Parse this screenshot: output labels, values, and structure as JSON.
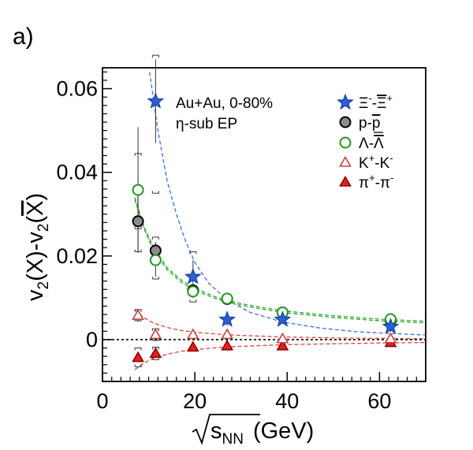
{
  "chart_data": {
    "type": "scatter",
    "panel_label": "a)",
    "annotation_lines": [
      "Au+Au,  0-80%",
      "η-sub EP"
    ],
    "xlim": [
      0,
      70
    ],
    "ylim": [
      -0.01,
      0.065
    ],
    "x_ticks": [
      0,
      20,
      40,
      60
    ],
    "y_ticks": [
      0,
      0.02,
      0.04,
      0.06
    ],
    "x_tick_labels": [
      "0",
      "20",
      "40",
      "60"
    ],
    "y_tick_labels": [
      "0",
      "0.02",
      "0.04",
      "0.06"
    ],
    "x_axis_label": {
      "prefix": "s",
      "subscript": "NN",
      "suffix": "(GeV)"
    },
    "y_axis_label": {
      "a": "v",
      "a_sub": "2",
      "b": "(X)-v",
      "b_sub": "2",
      "c": "(",
      "c_bar": "X",
      "d": ")"
    },
    "zero_line": true,
    "legend_position": "top-right",
    "series": [
      {
        "name": "Ξ⁻-Ξ̄⁺",
        "marker": "star",
        "fill": "#2a5fd0",
        "stroke": "#123a9a",
        "points": [
          {
            "x": 11.5,
            "y": 0.057,
            "err": 0.01
          },
          {
            "x": 19.6,
            "y": 0.015,
            "err": 0.004
          },
          {
            "x": 27,
            "y": 0.0048,
            "err": 0.0015
          },
          {
            "x": 39,
            "y": 0.0048,
            "err": 0.001
          },
          {
            "x": 62.4,
            "y": 0.0031,
            "err": 0.0012
          }
        ],
        "sys": [
          {
            "x": 11.5,
            "lo": 0.035,
            "hi": 0.068
          },
          {
            "x": 19.6,
            "lo": 0.009,
            "hi": 0.021
          }
        ],
        "fit_color": "#3b6fd6",
        "fit": [
          [
            10.2,
            0.064
          ],
          [
            12,
            0.05
          ],
          [
            14,
            0.038
          ],
          [
            16,
            0.03
          ],
          [
            18,
            0.0235
          ],
          [
            20,
            0.0185
          ],
          [
            23,
            0.0135
          ],
          [
            27,
            0.0095
          ],
          [
            32,
            0.0065
          ],
          [
            39,
            0.0042
          ],
          [
            47,
            0.0028
          ],
          [
            55,
            0.0019
          ],
          [
            62,
            0.0015
          ],
          [
            70,
            0.0011
          ]
        ]
      },
      {
        "name": "p-p̄",
        "marker": "circle",
        "fill": "#8c8c8c",
        "stroke": "#000000",
        "points": [
          {
            "x": 7.7,
            "y": 0.0283,
            "err": 0.007
          },
          {
            "x": 11.5,
            "y": 0.0213,
            "err": 0.002
          },
          {
            "x": 19.6,
            "y": 0.0118,
            "err": 0.0012
          },
          {
            "x": 27,
            "y": 0.0097,
            "err": 0.0008
          },
          {
            "x": 39,
            "y": 0.0065,
            "err": 0.0005
          },
          {
            "x": 62.4,
            "y": 0.0046,
            "err": 0.0008
          }
        ],
        "sys": [
          {
            "x": 7.7,
            "lo": 0.021,
            "hi": 0.0365
          },
          {
            "x": 11.5,
            "lo": 0.0145,
            "hi": 0.0245
          }
        ],
        "fit_color": "#2aa52a",
        "fit": [
          [
            7,
            0.034
          ],
          [
            9,
            0.027
          ],
          [
            11,
            0.0222
          ],
          [
            14,
            0.0172
          ],
          [
            17,
            0.0143
          ],
          [
            20,
            0.0123
          ],
          [
            25,
            0.01
          ],
          [
            30,
            0.0086
          ],
          [
            35,
            0.0076
          ],
          [
            40,
            0.0068
          ],
          [
            50,
            0.0057
          ],
          [
            60,
            0.0049
          ],
          [
            70,
            0.0044
          ]
        ]
      },
      {
        "name": "Λ-Λ̄",
        "marker": "circle",
        "fill": "#ffffff",
        "stroke": "#1f9a1f",
        "points": [
          {
            "x": 7.7,
            "y": 0.0358,
            "err": 0.015
          },
          {
            "x": 11.5,
            "y": 0.019,
            "err": 0.004
          },
          {
            "x": 19.6,
            "y": 0.0115,
            "err": 0.0015
          },
          {
            "x": 27,
            "y": 0.0098,
            "err": 0.0008
          },
          {
            "x": 39,
            "y": 0.0065,
            "err": 0.0005
          },
          {
            "x": 62.4,
            "y": 0.0049,
            "err": 0.0005
          }
        ],
        "sys": [
          {
            "x": 7.7,
            "lo": 0.0265,
            "hi": 0.0445
          }
        ],
        "fit_color": "#2aa52a",
        "fit": [
          [
            7,
            0.0335
          ],
          [
            9,
            0.0265
          ],
          [
            11,
            0.0215
          ],
          [
            14,
            0.0167
          ],
          [
            17,
            0.0138
          ],
          [
            20,
            0.0118
          ],
          [
            25,
            0.0096
          ],
          [
            30,
            0.0082
          ],
          [
            35,
            0.0072
          ],
          [
            40,
            0.0064
          ],
          [
            50,
            0.0053
          ],
          [
            60,
            0.0045
          ],
          [
            70,
            0.004
          ]
        ]
      },
      {
        "name": "K⁺-K⁻",
        "marker": "triangle",
        "fill": "#ffffff",
        "stroke": "#c04040",
        "points": [
          {
            "x": 7.7,
            "y": 0.0058,
            "err": 0.0015
          },
          {
            "x": 11.5,
            "y": 0.0012,
            "err": 0.0008
          },
          {
            "x": 19.6,
            "y": 0.0012,
            "err": 0.0005
          },
          {
            "x": 27,
            "y": 0.0012,
            "err": 0.0004
          },
          {
            "x": 39,
            "y": 0.0002,
            "err": 0.0003
          },
          {
            "x": 62.4,
            "y": 0.0002,
            "err": 0.0003
          }
        ],
        "sys": [
          {
            "x": 7.7,
            "lo": 0.0045,
            "hi": 0.0072
          },
          {
            "x": 11.5,
            "lo": -0.0002,
            "hi": 0.0026
          }
        ],
        "fit_color": "#e04040",
        "fit": [
          [
            7,
            0.0072
          ],
          [
            9,
            0.0052
          ],
          [
            11,
            0.004
          ],
          [
            14,
            0.0029
          ],
          [
            17,
            0.0022
          ],
          [
            20,
            0.0018
          ],
          [
            25,
            0.0013
          ],
          [
            30,
            0.001
          ],
          [
            40,
            0.0006
          ],
          [
            50,
            0.0004
          ],
          [
            60,
            0.0003
          ],
          [
            70,
            0.0002
          ]
        ]
      },
      {
        "name": "π⁺-π⁻",
        "marker": "triangle",
        "fill": "#e52020",
        "stroke": "#8a0000",
        "points": [
          {
            "x": 7.7,
            "y": -0.0043,
            "err": 0.0006
          },
          {
            "x": 11.5,
            "y": -0.0033,
            "err": 0.0005
          },
          {
            "x": 19.6,
            "y": -0.0018,
            "err": 0.0003
          },
          {
            "x": 27,
            "y": -0.0015,
            "err": 0.0003
          },
          {
            "x": 39,
            "y": -0.0015,
            "err": 0.0002
          },
          {
            "x": 62.4,
            "y": -0.0007,
            "err": 0.0002
          }
        ],
        "sys": [
          {
            "x": 7.7,
            "lo": -0.0065,
            "hi": -0.002
          },
          {
            "x": 11.5,
            "lo": -0.0048,
            "hi": -0.0018
          }
        ],
        "fit_color": "#e04040",
        "fit": [
          [
            7,
            -0.0072
          ],
          [
            9,
            -0.0056
          ],
          [
            11,
            -0.0045
          ],
          [
            14,
            -0.0035
          ],
          [
            17,
            -0.0028
          ],
          [
            20,
            -0.0024
          ],
          [
            25,
            -0.0019
          ],
          [
            30,
            -0.0016
          ],
          [
            40,
            -0.0012
          ],
          [
            50,
            -0.001
          ],
          [
            60,
            -0.0008
          ],
          [
            70,
            -0.0007
          ]
        ]
      }
    ]
  }
}
